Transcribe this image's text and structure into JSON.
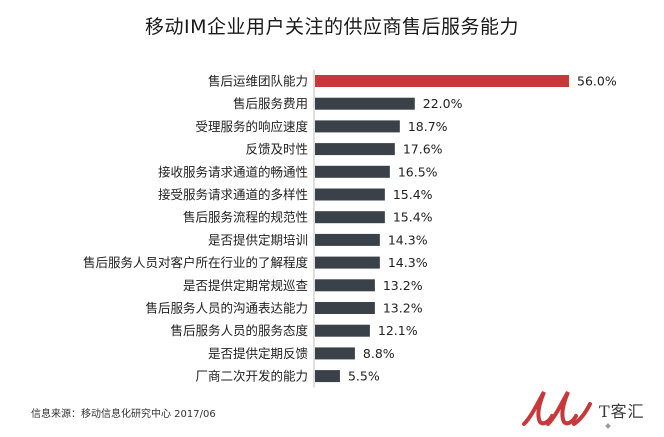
{
  "chart_data": {
    "type": "bar",
    "orientation": "horizontal",
    "title": "移动IM企业用户关注的供应商售后服务能力",
    "categories": [
      "售后运维团队能力",
      "售后服务费用",
      "受理服务的响应速度",
      "反馈及时性",
      "接收服务请求通道的畅通性",
      "接受服务请求通道的多样性",
      "售后服务流程的规范性",
      "是否提供定期培训",
      "售后服务人员对客户所在行业的了解程度",
      "是否提供定期常规巡查",
      "售后服务人员的沟通表达能力",
      "售后服务人员的服务态度",
      "是否提供定期反馈",
      "厂商二次开发的能力"
    ],
    "values": [
      56.0,
      22.0,
      18.7,
      17.6,
      16.5,
      15.4,
      15.4,
      14.3,
      14.3,
      13.2,
      13.2,
      12.1,
      8.8,
      5.5
    ],
    "value_labels": [
      "56.0%",
      "22.0%",
      "18.7%",
      "17.6%",
      "16.5%",
      "15.4%",
      "15.4%",
      "14.3%",
      "14.3%",
      "13.2%",
      "13.2%",
      "12.1%",
      "8.8%",
      "5.5%"
    ],
    "xlim": [
      0,
      56.0
    ],
    "colors": {
      "highlight": "#c8383b",
      "default": "#3b4148",
      "axis": "#bfbfbf"
    },
    "grid": false,
    "legend": "none"
  },
  "source": "信息来源：移动信息化研究中心 2017/06",
  "watermark": {
    "text": "T客汇",
    "logo_color": "#c8383b"
  }
}
